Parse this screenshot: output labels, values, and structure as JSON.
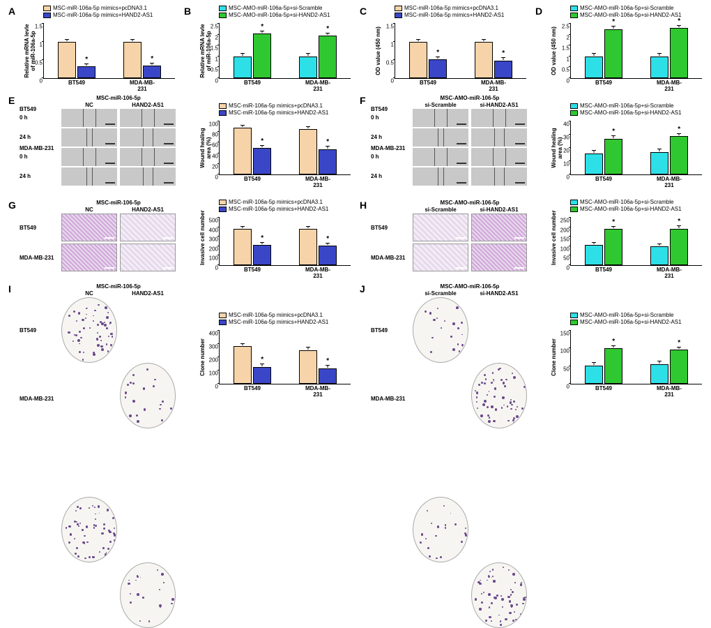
{
  "colors": {
    "peach": "#f6d3a8",
    "blue": "#3a46c8",
    "cyan": "#2de0e8",
    "green": "#30c830"
  },
  "cell_lines": [
    "BT549",
    "MDA-MB-231"
  ],
  "legends": {
    "mimics": [
      "MSC-miR-106a-5p mimics+pcDNA3.1",
      "MSC-miR-106a-5p mimics+HAND2-AS1"
    ],
    "amo": [
      "MSC-AMO-miR-106a-5p+si-Scramble",
      "MSC-AMO-miR-106a-5p+si-HAND2-AS1"
    ]
  },
  "panels": {
    "A": {
      "ylabel": "Relative mRNA levle\nof miR-106a-5p",
      "ylim": [
        0,
        1.5
      ],
      "yticks": [
        0,
        0.5,
        1.0,
        1.5
      ],
      "legend_key": "mimics",
      "pair_colors": [
        "peach",
        "blue"
      ],
      "data": [
        [
          1.0,
          0.33
        ],
        [
          1.0,
          0.34
        ]
      ],
      "stars": [
        [
          false,
          true
        ],
        [
          false,
          true
        ]
      ]
    },
    "B": {
      "ylabel": "Relative mRNA levle\nof miR-106a-5p",
      "ylim": [
        0,
        2.5
      ],
      "yticks": [
        0,
        0.5,
        1.0,
        1.5,
        2.0,
        2.5
      ],
      "legend_key": "amo",
      "pair_colors": [
        "cyan",
        "green"
      ],
      "data": [
        [
          1.0,
          2.05
        ],
        [
          1.0,
          1.95
        ]
      ],
      "stars": [
        [
          false,
          true
        ],
        [
          false,
          true
        ]
      ]
    },
    "C": {
      "ylabel": "OD value (450 nm)",
      "ylim": [
        0,
        1.5
      ],
      "yticks": [
        0,
        0.5,
        1.0,
        1.5
      ],
      "legend_key": "mimics",
      "pair_colors": [
        "peach",
        "blue"
      ],
      "data": [
        [
          1.0,
          0.52
        ],
        [
          1.0,
          0.49
        ]
      ],
      "stars": [
        [
          false,
          true
        ],
        [
          false,
          true
        ]
      ]
    },
    "D": {
      "ylabel": "OD value (450 nm)",
      "ylim": [
        0,
        2.5
      ],
      "yticks": [
        0,
        0.5,
        1.0,
        1.5,
        2.0,
        2.5
      ],
      "legend_key": "amo",
      "pair_colors": [
        "cyan",
        "green"
      ],
      "data": [
        [
          1.0,
          2.25
        ],
        [
          1.0,
          2.3
        ]
      ],
      "stars": [
        [
          false,
          true
        ],
        [
          false,
          true
        ]
      ]
    },
    "E": {
      "header": "MSC-miR-106-5p",
      "cols": [
        "NC",
        "HAND2-AS1"
      ],
      "row_labels": [
        "BT549",
        "0 h",
        "24 h",
        "MDA-MB-231",
        "0 h",
        "24 h"
      ],
      "chart": {
        "ylabel": "Wound healing\narea (%)",
        "ylim": [
          0,
          100
        ],
        "yticks": [
          0,
          20,
          40,
          60,
          80,
          100
        ],
        "legend_key": "mimics",
        "pair_colors": [
          "peach",
          "blue"
        ],
        "data": [
          [
            88,
            50
          ],
          [
            85,
            48
          ]
        ],
        "stars": [
          [
            false,
            true
          ],
          [
            false,
            true
          ]
        ]
      }
    },
    "F": {
      "header": "MSC-AMO-miR-106-5p",
      "cols": [
        "si-Scramble",
        "si-HAND2-AS1"
      ],
      "row_labels": [
        "BT549",
        "0 h",
        "24 h",
        "MDA-MB-231",
        "0 h",
        "24 h"
      ],
      "chart": {
        "ylabel": "Wound healing\narea (%)",
        "ylim": [
          0,
          40
        ],
        "yticks": [
          0,
          10,
          20,
          30,
          40
        ],
        "legend_key": "amo",
        "pair_colors": [
          "cyan",
          "green"
        ],
        "data": [
          [
            16,
            27
          ],
          [
            17,
            29
          ]
        ],
        "stars": [
          [
            false,
            true
          ],
          [
            false,
            true
          ]
        ]
      }
    },
    "G": {
      "header": "MSC-miR-106-5p",
      "cols": [
        "NC",
        "HAND2-AS1"
      ],
      "rows": [
        "BT549",
        "MDA-MB-231"
      ],
      "chart": {
        "ylabel": "Invasive cell number",
        "ylim": [
          0,
          500
        ],
        "yticks": [
          0,
          100,
          200,
          300,
          400,
          500
        ],
        "legend_key": "mimics",
        "pair_colors": [
          "peach",
          "blue"
        ],
        "data": [
          [
            380,
            215
          ],
          [
            385,
            205
          ]
        ],
        "stars": [
          [
            false,
            true
          ],
          [
            false,
            true
          ]
        ]
      }
    },
    "H": {
      "header": "MSC-AMO-miR-106-5p",
      "cols": [
        "si-Scramble",
        "si-HAND2-AS1"
      ],
      "rows": [
        "BT549",
        "MDA-MB-231"
      ],
      "chart": {
        "ylabel": "Invasive cell number",
        "ylim": [
          0,
          250
        ],
        "yticks": [
          0,
          50,
          100,
          150,
          200,
          250
        ],
        "legend_key": "amo",
        "pair_colors": [
          "cyan",
          "green"
        ],
        "data": [
          [
            105,
            190
          ],
          [
            100,
            193
          ]
        ],
        "stars": [
          [
            false,
            true
          ],
          [
            false,
            true
          ]
        ]
      }
    },
    "I": {
      "header": "MSC-miR-106-5p",
      "cols": [
        "NC",
        "HAND2-AS1"
      ],
      "rows": [
        "BT549",
        "MDA-MB-231"
      ],
      "chart": {
        "ylabel": "Clone number",
        "ylim": [
          0,
          400
        ],
        "yticks": [
          0,
          100,
          200,
          300,
          400
        ],
        "legend_key": "mimics",
        "pair_colors": [
          "peach",
          "blue"
        ],
        "data": [
          [
            285,
            128
          ],
          [
            255,
            118
          ]
        ],
        "stars": [
          [
            false,
            true
          ],
          [
            false,
            true
          ]
        ]
      }
    },
    "J": {
      "header": "MSC-AMO-miR-106-5p",
      "cols": [
        "si-Scramble",
        "si-HAND2-AS1"
      ],
      "rows": [
        "BT549",
        "MDA-MB-231"
      ],
      "chart": {
        "ylabel": "Clone number",
        "ylim": [
          0,
          150
        ],
        "yticks": [
          0,
          50,
          100,
          150
        ],
        "legend_key": "amo",
        "pair_colors": [
          "cyan",
          "green"
        ],
        "data": [
          [
            52,
            100
          ],
          [
            56,
            97
          ]
        ],
        "stars": [
          [
            false,
            true
          ],
          [
            false,
            true
          ]
        ]
      }
    }
  }
}
